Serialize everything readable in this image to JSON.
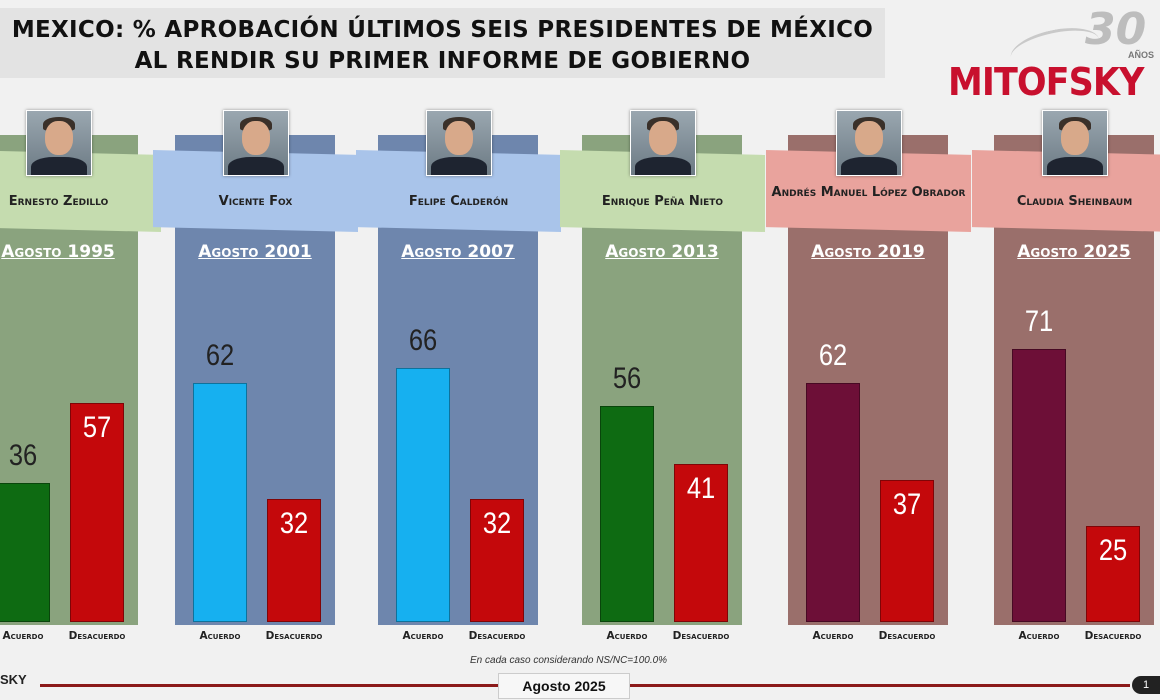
{
  "title": {
    "line1": "MEXICO: % APROBACIÓN ÚLTIMOS SEIS PRESIDENTES DE MÉXICO",
    "line2": "AL RENDIR SU PRIMER INFORME DE GOBIERNO"
  },
  "logo": {
    "anniversary": "30",
    "anos": "AÑOS",
    "brand": "MITOFSKY",
    "footer_brand": "SKY"
  },
  "colors": {
    "green_panel": "#8aa37e",
    "green_header": "#c5dcaf",
    "blue_panel": "#6e86ad",
    "blue_header": "#a9c4ea",
    "maroon_panel": "#9a6f6b",
    "maroon_header": "#e9a39d",
    "acuerdo_green": "#0e6b12",
    "acuerdo_blue": "#16b0f0",
    "acuerdo_maroon": "#6d0f37",
    "desacuerdo_red": "#c4080b"
  },
  "chart_data": {
    "type": "bar",
    "categories": [
      "Acuerdo",
      "Desacuerdo"
    ],
    "ylim": [
      0,
      100
    ],
    "panels": [
      {
        "president": "Ernesto Zedillo",
        "date": "Agosto 1995",
        "acuerdo": 36,
        "desacuerdo": 57,
        "theme": "green"
      },
      {
        "president": "Vicente Fox",
        "date": "Agosto 2001",
        "acuerdo": 62,
        "desacuerdo": 32,
        "theme": "blue"
      },
      {
        "president": "Felipe Calderón",
        "date": "Agosto 2007",
        "acuerdo": 66,
        "desacuerdo": 32,
        "theme": "blue"
      },
      {
        "president": "Enrique Peña Nieto",
        "date": "Agosto 2013",
        "acuerdo": 56,
        "desacuerdo": 41,
        "theme": "green"
      },
      {
        "president": "Andrés Manuel López Obrador",
        "date": "Agosto 2019",
        "acuerdo": 62,
        "desacuerdo": 37,
        "theme": "maroon"
      },
      {
        "president": "Claudia Sheinbaum",
        "date": "Agosto 2025",
        "acuerdo": 71,
        "desacuerdo": 25,
        "theme": "maroon"
      }
    ]
  },
  "footnote": "En cada caso considerando NS/NC=100.0%",
  "footer": {
    "date": "Agosto 2025",
    "page": "1"
  }
}
